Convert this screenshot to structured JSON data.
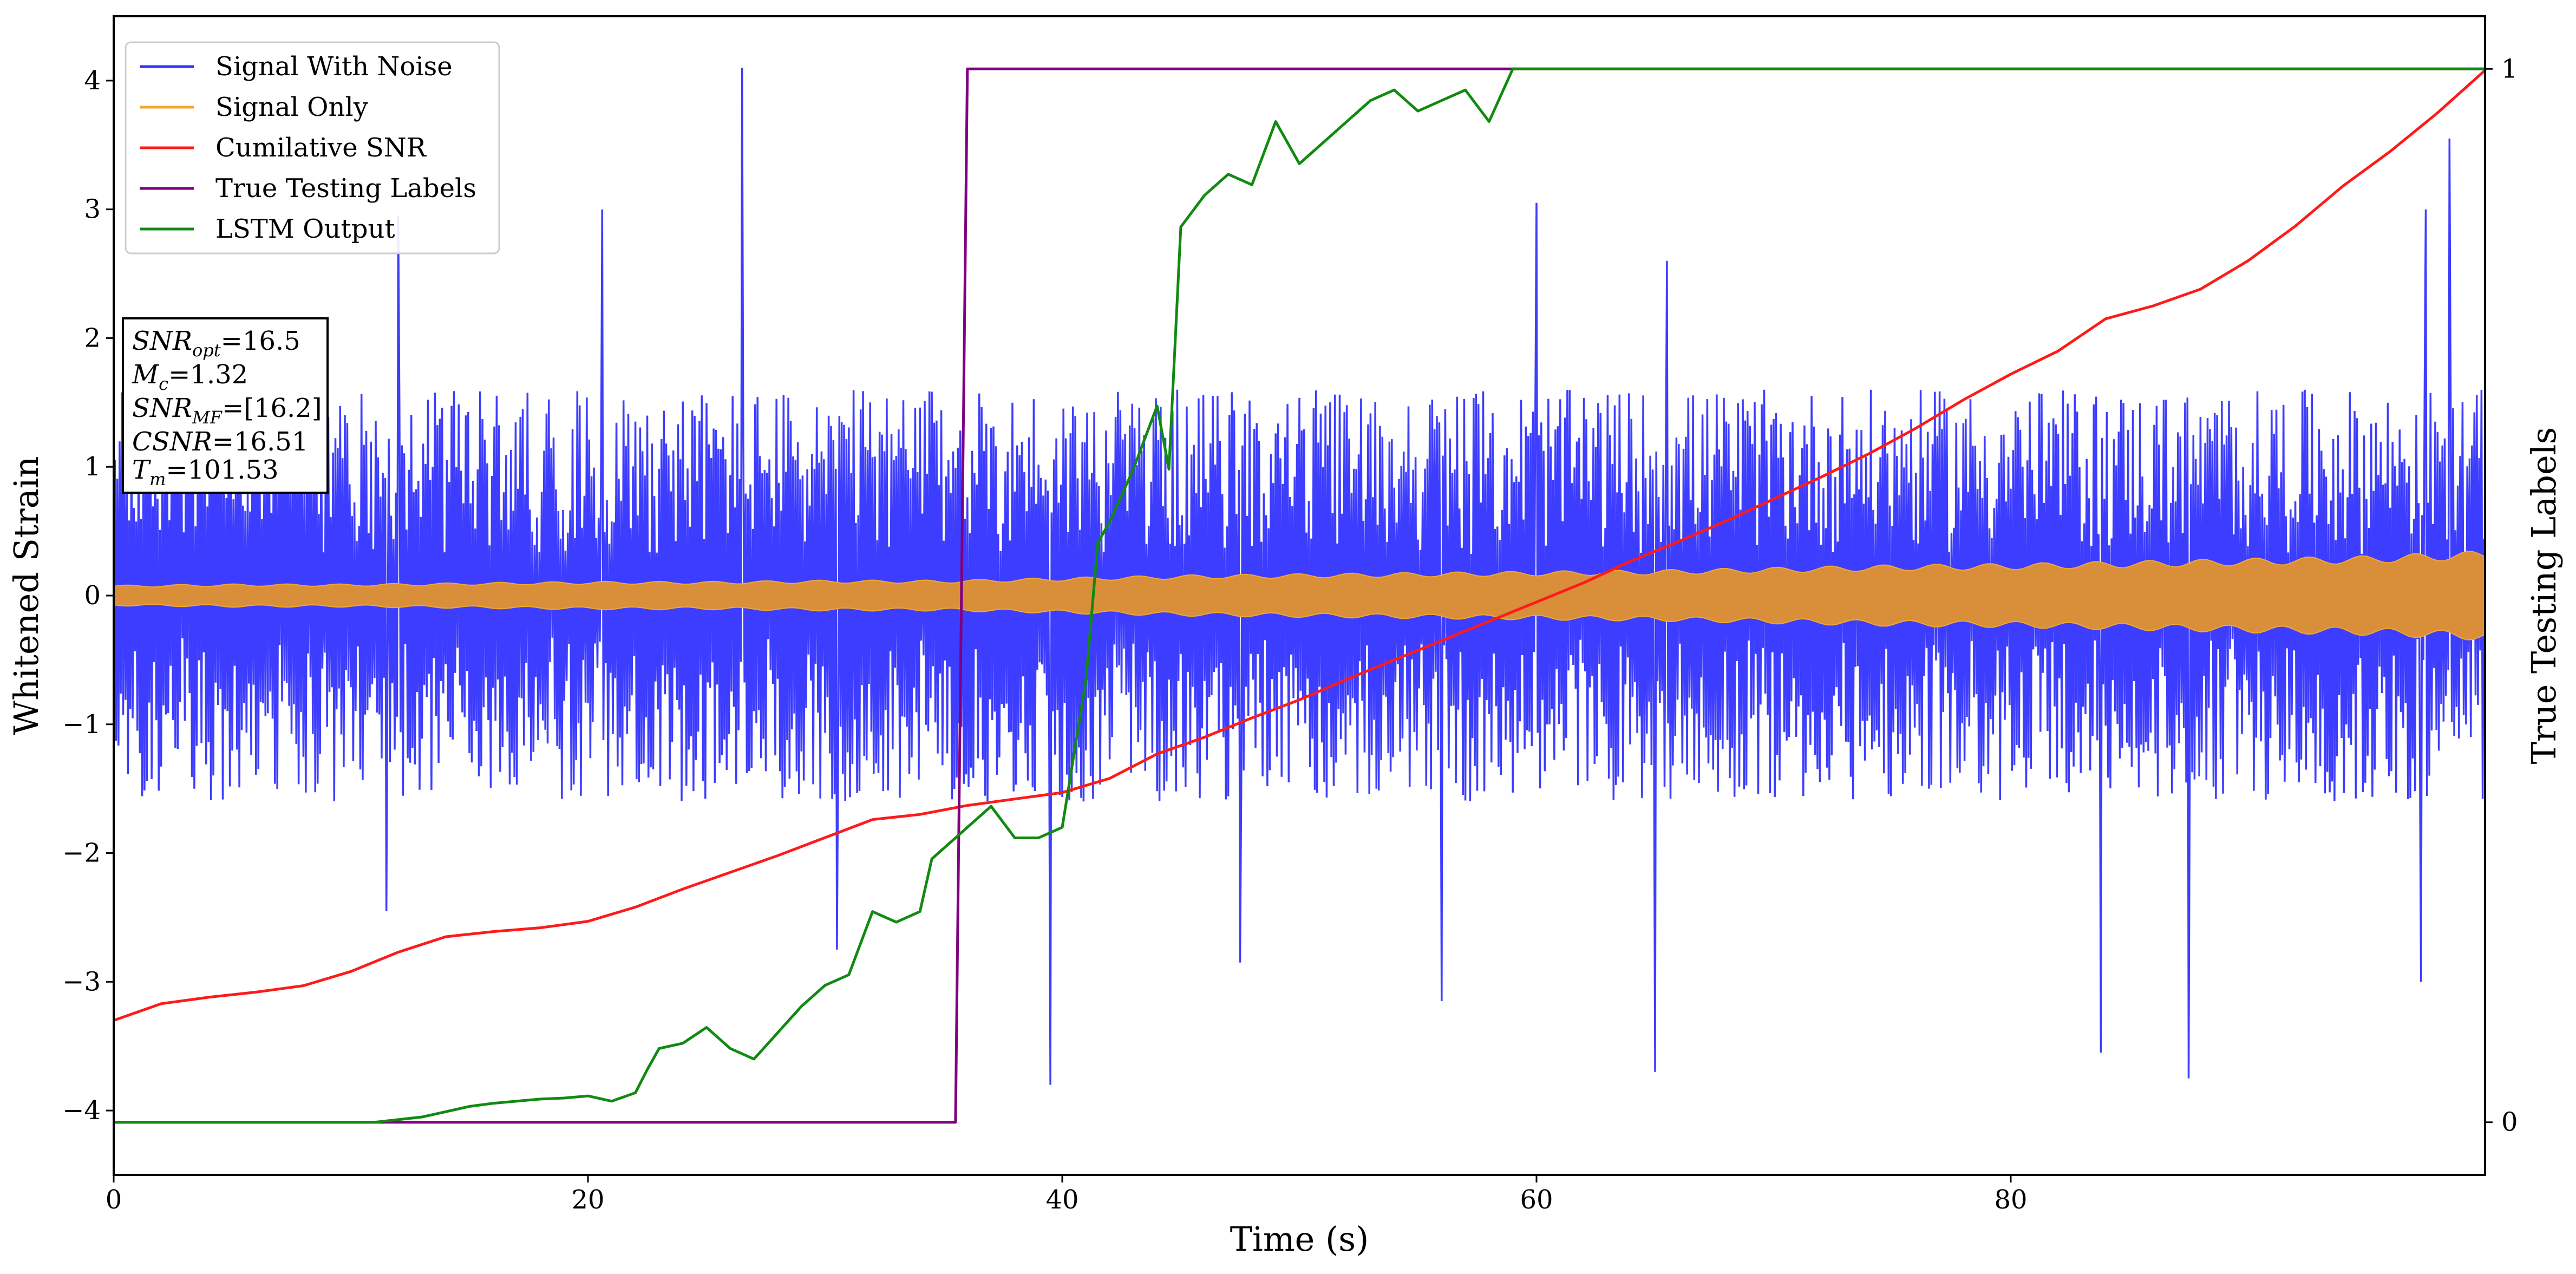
{
  "chart_data": {
    "type": "line",
    "xlabel": "Time (s)",
    "ylabel": "Whitened Strain",
    "y2label": "True Testing Labels",
    "xlim": [
      0,
      100
    ],
    "ylim": [
      -4.5,
      4.5
    ],
    "y2lim": [
      -0.05,
      1.05
    ],
    "x_ticks": [
      0,
      20,
      40,
      60,
      80
    ],
    "y_ticks": [
      -4,
      -3,
      -2,
      -1,
      0,
      1,
      2,
      3,
      4
    ],
    "y2_ticks": [
      0,
      1
    ],
    "grid": false,
    "legend": {
      "position": "top-left",
      "entries": [
        "Signal With Noise",
        "Signal Only",
        "Cumilative SNR",
        "True Testing Labels",
        "LSTM Output"
      ]
    },
    "colors": {
      "noise": "#3333ff",
      "signal": "#f0a830",
      "snr": "#ff1a1a",
      "labels": "#800080",
      "lstm": "#118a11"
    },
    "annotation": {
      "snr_opt": "16.5",
      "mc": "1.32",
      "snr_mf": "[16.2]",
      "csnr": "16.51",
      "tm": "101.53"
    },
    "series": [
      {
        "name": "Signal With Noise",
        "axis": "left",
        "style": "noise",
        "typical_amplitude": 1.6,
        "spikes": [
          {
            "x": 26.5,
            "y": 4.1
          },
          {
            "x": 98.5,
            "y": 3.55
          },
          {
            "x": 97.5,
            "y": 3.0
          },
          {
            "x": 20.6,
            "y": 3.0
          },
          {
            "x": 12.0,
            "y": 2.95
          },
          {
            "x": 60.0,
            "y": 3.05
          },
          {
            "x": 65.5,
            "y": 2.6
          },
          {
            "x": 11.5,
            "y": -2.45
          },
          {
            "x": 39.5,
            "y": -3.8
          },
          {
            "x": 87.5,
            "y": -3.75
          },
          {
            "x": 83.8,
            "y": -3.55
          },
          {
            "x": 65.0,
            "y": -3.7
          },
          {
            "x": 56.0,
            "y": -3.15
          },
          {
            "x": 97.3,
            "y": -3.0
          },
          {
            "x": 30.5,
            "y": -2.75
          },
          {
            "x": 47.5,
            "y": -2.85
          }
        ]
      },
      {
        "name": "Signal Only",
        "axis": "left",
        "style": "envelope",
        "x": [
          0,
          5,
          10,
          15,
          20,
          25,
          30,
          35,
          40,
          45,
          50,
          55,
          60,
          65,
          70,
          75,
          80,
          85,
          90,
          95,
          100
        ],
        "amplitude": [
          0.08,
          0.09,
          0.09,
          0.1,
          0.11,
          0.11,
          0.12,
          0.12,
          0.14,
          0.16,
          0.17,
          0.18,
          0.19,
          0.2,
          0.22,
          0.24,
          0.25,
          0.27,
          0.29,
          0.31,
          0.35
        ]
      },
      {
        "name": "Cumilative SNR",
        "axis": "left",
        "x": [
          0,
          2,
          4,
          6,
          8,
          10,
          12,
          14,
          16,
          18,
          20,
          22,
          24,
          26,
          28,
          30,
          32,
          34,
          36,
          38,
          40,
          42,
          44,
          46,
          48,
          50,
          52,
          54,
          56,
          58,
          60,
          62,
          64,
          66,
          68,
          70,
          72,
          74,
          76,
          78,
          80,
          82,
          84,
          86,
          88,
          90,
          92,
          94,
          96,
          98,
          100
        ],
        "y": [
          -3.3,
          -3.17,
          -3.12,
          -3.08,
          -3.03,
          -2.92,
          -2.77,
          -2.65,
          -2.61,
          -2.58,
          -2.53,
          -2.42,
          -2.28,
          -2.15,
          -2.02,
          -1.88,
          -1.74,
          -1.7,
          -1.63,
          -1.58,
          -1.53,
          -1.42,
          -1.23,
          -1.1,
          -0.95,
          -0.81,
          -0.65,
          -0.5,
          -0.35,
          -0.2,
          -0.05,
          0.1,
          0.27,
          0.42,
          0.58,
          0.75,
          0.92,
          1.1,
          1.3,
          1.52,
          1.72,
          1.9,
          2.15,
          2.25,
          2.38,
          2.6,
          2.87,
          3.18,
          3.45,
          3.75,
          4.08
        ]
      },
      {
        "name": "True Testing Labels",
        "axis": "right",
        "x": [
          0,
          35.5,
          36,
          100
        ],
        "y": [
          0,
          0,
          1,
          1
        ]
      },
      {
        "name": "LSTM Output",
        "axis": "right",
        "x": [
          0,
          11,
          13,
          14,
          15,
          16,
          17,
          18,
          19,
          20,
          21,
          22,
          22.5,
          23,
          24,
          25,
          26,
          27,
          28,
          29,
          30,
          31,
          31.5,
          32,
          33,
          34,
          34.5,
          35,
          36,
          37,
          38,
          39,
          40,
          41,
          41.5,
          42,
          43,
          44,
          44.5,
          45,
          46,
          47,
          48,
          49,
          50,
          51,
          52,
          53,
          54,
          55,
          56,
          57,
          58,
          59,
          60,
          62,
          65,
          70,
          80,
          90,
          100
        ],
        "y": [
          0,
          0,
          0.005,
          0.01,
          0.015,
          0.018,
          0.02,
          0.022,
          0.023,
          0.025,
          0.02,
          0.028,
          0.05,
          0.07,
          0.075,
          0.09,
          0.07,
          0.06,
          0.085,
          0.11,
          0.13,
          0.14,
          0.17,
          0.2,
          0.19,
          0.2,
          0.25,
          0.26,
          0.28,
          0.3,
          0.27,
          0.27,
          0.28,
          0.42,
          0.55,
          0.57,
          0.62,
          0.68,
          0.62,
          0.85,
          0.88,
          0.9,
          0.89,
          0.95,
          0.91,
          0.93,
          0.95,
          0.97,
          0.98,
          0.96,
          0.97,
          0.98,
          0.95,
          1.0,
          1.0,
          1.0,
          1.0,
          1.0,
          1.0,
          1.0,
          1.0
        ]
      }
    ]
  }
}
